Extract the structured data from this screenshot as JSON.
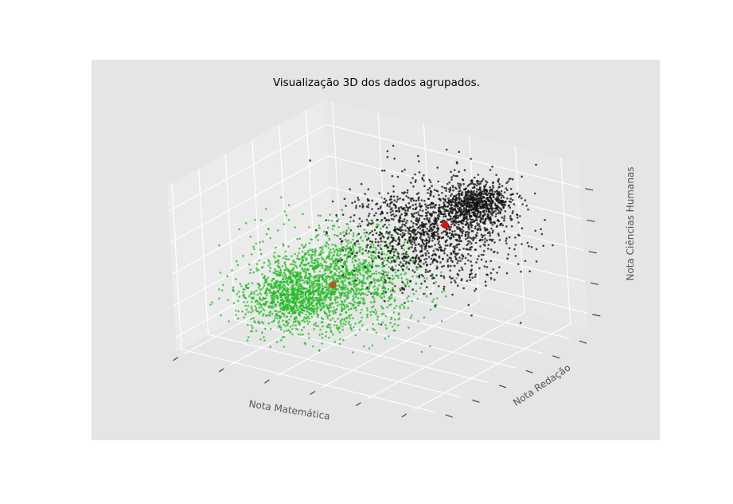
{
  "chart_data": {
    "type": "scatter",
    "projection": "3d",
    "title": "Visualização 3D dos dados agrupados.",
    "xlabel": "Nota Matemática",
    "ylabel": "Nota Redação",
    "zlabel": "Nota Ciências Humanas",
    "grid": true,
    "tick_labels_visible": false,
    "background_color": "#e5e5e5",
    "pane_color": "#e9e9e9",
    "series": [
      {
        "color": "#22bb22",
        "approx_points": 2400,
        "blobs": [
          {
            "center": [
              0.26,
              0.34,
              0.26
            ],
            "spread": [
              0.08,
              0.11,
              0.07
            ],
            "weight": 0.4
          },
          {
            "center": [
              0.42,
              0.4,
              0.4
            ],
            "spread": [
              0.13,
              0.16,
              0.13
            ],
            "weight": 0.6
          }
        ],
        "centroid": {
          "position": [
            0.38,
            0.4,
            0.34
          ],
          "color": "#b05a1e"
        }
      },
      {
        "color": "#111111",
        "approx_points": 2000,
        "blobs": [
          {
            "center": [
              0.74,
              0.76,
              0.78
            ],
            "spread": [
              0.05,
              0.07,
              0.05
            ],
            "weight": 0.35
          },
          {
            "center": [
              0.62,
              0.66,
              0.62
            ],
            "spread": [
              0.13,
              0.15,
              0.13
            ],
            "weight": 0.65
          }
        ],
        "centroid": {
          "position": [
            0.66,
            0.68,
            0.66
          ],
          "color": "#dd1111"
        }
      }
    ]
  }
}
